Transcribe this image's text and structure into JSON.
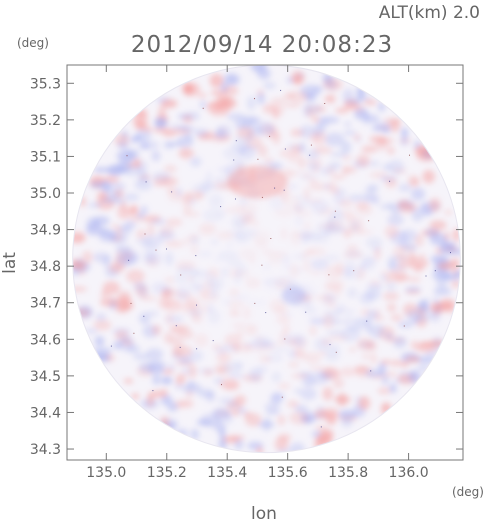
{
  "header": {
    "altitude_label": "ALT(km) 2.0",
    "timestamp": "2012/09/14 20:08:23"
  },
  "chart_data": {
    "type": "heatmap",
    "title": "2012/09/14 20:08:23",
    "subtitle": "ALT(km) 2.0",
    "xlabel": "lon",
    "ylabel": "lat",
    "x_unit": "(deg)",
    "y_unit": "(deg)",
    "xlim": [
      134.87,
      136.18
    ],
    "ylim": [
      34.27,
      35.35
    ],
    "x_ticks": [
      135.0,
      135.2,
      135.4,
      135.6,
      135.8,
      136.0
    ],
    "x_tick_labels": [
      "135.0",
      "135.2",
      "135.4",
      "135.6",
      "135.8",
      "136.0"
    ],
    "y_ticks": [
      34.3,
      34.4,
      34.5,
      34.6,
      34.7,
      34.8,
      34.9,
      35.0,
      35.1,
      35.2,
      35.3
    ],
    "y_tick_labels": [
      "34.3",
      "34.4",
      "34.5",
      "34.6",
      "34.7",
      "34.8",
      "34.9",
      "35.0",
      "35.1",
      "35.2",
      "35.3"
    ],
    "radar_center": [
      135.53,
      34.82
    ],
    "radar_radius_deg_lat": 0.53,
    "colors": {
      "positive": "#f5a0a0",
      "negative": "#a8b0f0",
      "neutral": "#f6f4fa",
      "axis": "#777777"
    },
    "features": [
      {
        "type": "positive-region",
        "center": [
          135.5,
          35.03
        ],
        "extent": [
          0.2,
          0.09
        ]
      },
      {
        "type": "negative-region",
        "center": [
          135.62,
          34.72
        ],
        "extent": [
          0.08,
          0.05
        ]
      }
    ]
  }
}
